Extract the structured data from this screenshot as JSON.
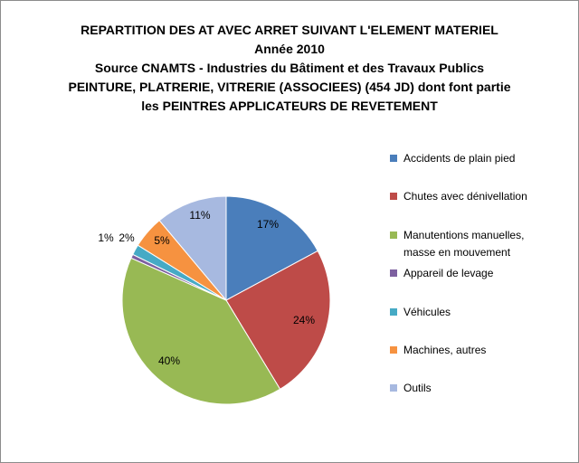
{
  "chart_data": {
    "type": "pie",
    "title_lines": [
      "REPARTITION DES AT AVEC ARRET SUIVANT L'ELEMENT MATERIEL",
      "Année 2010",
      "Source CNAMTS - Industries du Bâtiment et des Travaux Publics",
      "PEINTURE, PLATRERIE, VITRERIE (ASSOCIEES) (454 JD) dont font partie",
      "les PEINTRES APPLICATEURS DE REVETEMENT"
    ],
    "slices": [
      {
        "name": "Accidents de plain pied",
        "value": 17,
        "label": "17%",
        "color": "#4a7ebb"
      },
      {
        "name": "Chutes avec dénivellation",
        "value": 24,
        "label": "24%",
        "color": "#be4b48"
      },
      {
        "name": "Manutentions manuelles, masse en mouvement",
        "value": 40,
        "label": "40%",
        "color": "#98b954"
      },
      {
        "name": "Appareil de levage",
        "value": 0.6,
        "label": "1%",
        "color": "#7d60a0"
      },
      {
        "name": "Véhicules",
        "value": 1.6,
        "label": "2%",
        "color": "#46aac5"
      },
      {
        "name": "Machines, autres",
        "value": 5,
        "label": "5%",
        "color": "#f69240"
      },
      {
        "name": "Outils",
        "value": 11,
        "label": "11%",
        "color": "#a7b9e0"
      }
    ],
    "legend_position": "right"
  }
}
